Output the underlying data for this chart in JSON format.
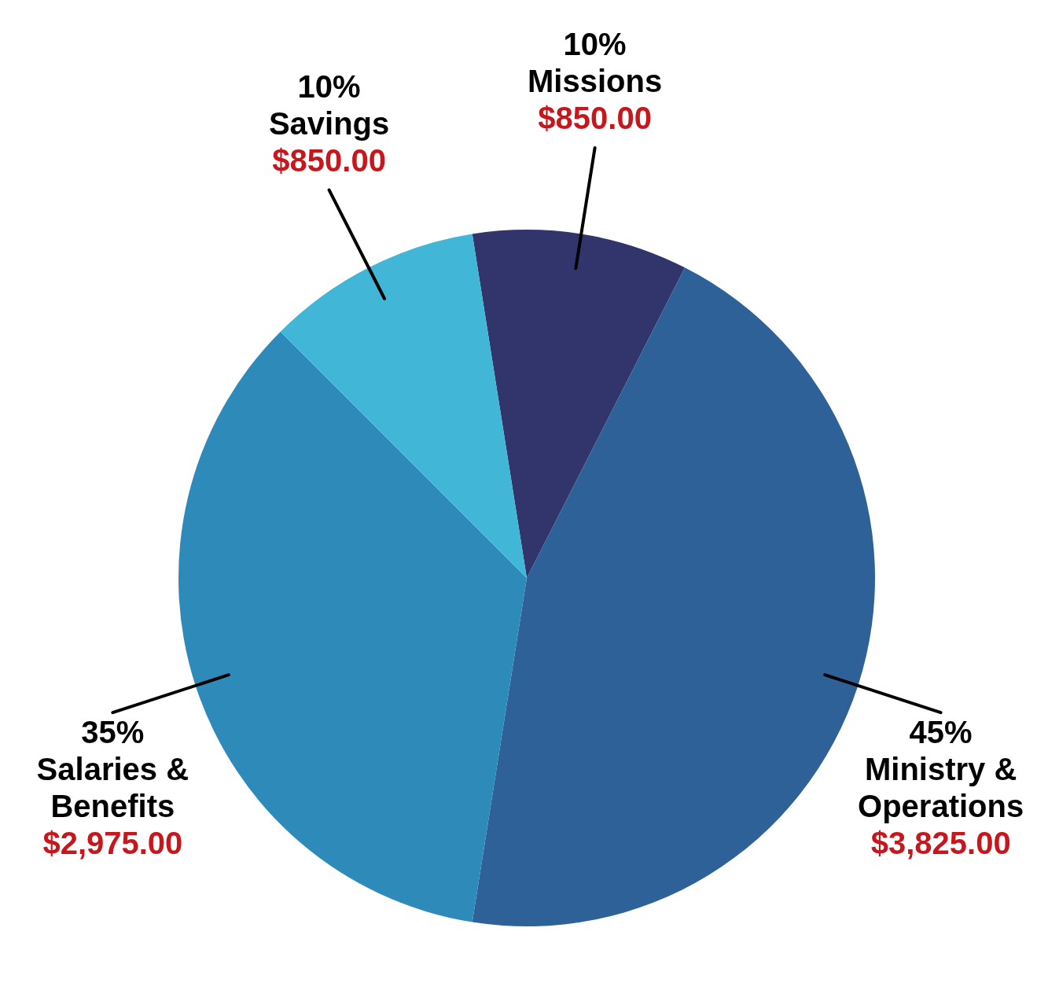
{
  "chart_data": {
    "type": "pie",
    "categories": [
      "Missions",
      "Ministry & Operations",
      "Salaries & Benefits",
      "Savings"
    ],
    "values": [
      850,
      3825,
      2975,
      850
    ],
    "colors": [
      "#31356b",
      "#2f6199",
      "#2e8bb9",
      "#42b6d6"
    ],
    "value_labels": [
      "$850.00",
      "$3,825.00",
      "$2,975.00",
      "$850.00"
    ],
    "annotations": [
      "10%",
      "45%",
      "35%",
      "10%"
    ],
    "legend": false
  }
}
